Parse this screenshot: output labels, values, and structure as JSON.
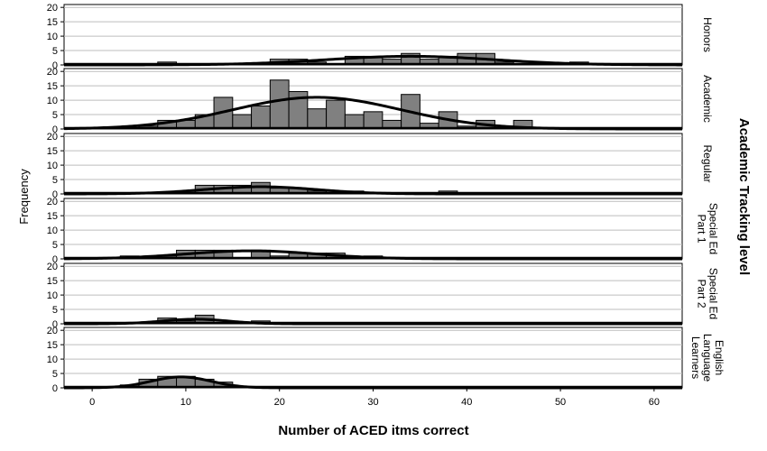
{
  "chart_data": {
    "type": "bar",
    "subtype": "faceted histogram with normal curves",
    "xlabel": "Number of ACED itms correct",
    "ylabel": "Frequency",
    "facet_title": "Academic Tracking level",
    "xlim": [
      -3,
      63
    ],
    "ylim": [
      0,
      21
    ],
    "x_ticks": [
      0,
      10,
      20,
      30,
      40,
      50,
      60
    ],
    "y_ticks": [
      0,
      5,
      10,
      15,
      20
    ],
    "bin_width": 2,
    "grid": "horizontal",
    "bar_color": "#808080",
    "curve_color": "#000000",
    "panels": [
      {
        "name_lines": [
          "Honors"
        ],
        "bins": [
          {
            "x": 8,
            "count": 1
          },
          {
            "x": 20,
            "count": 2
          },
          {
            "x": 22,
            "count": 2
          },
          {
            "x": 24,
            "count": 1
          },
          {
            "x": 28,
            "count": 3
          },
          {
            "x": 30,
            "count": 3
          },
          {
            "x": 32,
            "count": 2
          },
          {
            "x": 34,
            "count": 4
          },
          {
            "x": 36,
            "count": 2
          },
          {
            "x": 38,
            "count": 3
          },
          {
            "x": 40,
            "count": 4
          },
          {
            "x": 42,
            "count": 4
          },
          {
            "x": 44,
            "count": 1
          },
          {
            "x": 52,
            "count": 1
          }
        ],
        "curve": {
          "mean": 34,
          "sd": 9,
          "peak": 3
        }
      },
      {
        "name_lines": [
          "Academic"
        ],
        "bins": [
          {
            "x": 6,
            "count": 1
          },
          {
            "x": 8,
            "count": 3
          },
          {
            "x": 10,
            "count": 3
          },
          {
            "x": 12,
            "count": 5
          },
          {
            "x": 14,
            "count": 11
          },
          {
            "x": 16,
            "count": 5
          },
          {
            "x": 18,
            "count": 8
          },
          {
            "x": 20,
            "count": 17
          },
          {
            "x": 22,
            "count": 13
          },
          {
            "x": 24,
            "count": 7
          },
          {
            "x": 26,
            "count": 10
          },
          {
            "x": 28,
            "count": 5
          },
          {
            "x": 30,
            "count": 6
          },
          {
            "x": 32,
            "count": 3
          },
          {
            "x": 34,
            "count": 12
          },
          {
            "x": 36,
            "count": 2
          },
          {
            "x": 38,
            "count": 6
          },
          {
            "x": 40,
            "count": 1
          },
          {
            "x": 42,
            "count": 3
          },
          {
            "x": 44,
            "count": 1
          },
          {
            "x": 46,
            "count": 3
          }
        ],
        "curve": {
          "mean": 24,
          "sd": 9,
          "peak": 11
        }
      },
      {
        "name_lines": [
          "Regular"
        ],
        "bins": [
          {
            "x": 10,
            "count": 1
          },
          {
            "x": 12,
            "count": 3
          },
          {
            "x": 14,
            "count": 3
          },
          {
            "x": 16,
            "count": 3
          },
          {
            "x": 18,
            "count": 4
          },
          {
            "x": 20,
            "count": 2
          },
          {
            "x": 22,
            "count": 2
          },
          {
            "x": 24,
            "count": 1
          },
          {
            "x": 28,
            "count": 1
          },
          {
            "x": 38,
            "count": 1
          }
        ],
        "curve": {
          "mean": 18,
          "sd": 6,
          "peak": 2.5
        }
      },
      {
        "name_lines": [
          "Special Ed",
          "Part 1"
        ],
        "bins": [
          {
            "x": 4,
            "count": 1
          },
          {
            "x": 8,
            "count": 1
          },
          {
            "x": 10,
            "count": 3
          },
          {
            "x": 12,
            "count": 3
          },
          {
            "x": 14,
            "count": 3
          },
          {
            "x": 18,
            "count": 3
          },
          {
            "x": 20,
            "count": 1
          },
          {
            "x": 22,
            "count": 2
          },
          {
            "x": 24,
            "count": 2
          },
          {
            "x": 26,
            "count": 2
          },
          {
            "x": 30,
            "count": 1
          }
        ],
        "curve": {
          "mean": 17,
          "sd": 7,
          "peak": 2.8
        }
      },
      {
        "name_lines": [
          "Special Ed",
          "Part 2"
        ],
        "bins": [
          {
            "x": 8,
            "count": 2
          },
          {
            "x": 10,
            "count": 1
          },
          {
            "x": 12,
            "count": 3
          },
          {
            "x": 18,
            "count": 1
          }
        ],
        "curve": {
          "mean": 11,
          "sd": 3.5,
          "peak": 1.6
        }
      },
      {
        "name_lines": [
          "English",
          "Language",
          "Learners"
        ],
        "bins": [
          {
            "x": 4,
            "count": 1
          },
          {
            "x": 6,
            "count": 3
          },
          {
            "x": 8,
            "count": 4
          },
          {
            "x": 10,
            "count": 4
          },
          {
            "x": 12,
            "count": 3
          },
          {
            "x": 14,
            "count": 2
          }
        ],
        "curve": {
          "mean": 9.5,
          "sd": 3.2,
          "peak": 3.8
        }
      }
    ]
  }
}
